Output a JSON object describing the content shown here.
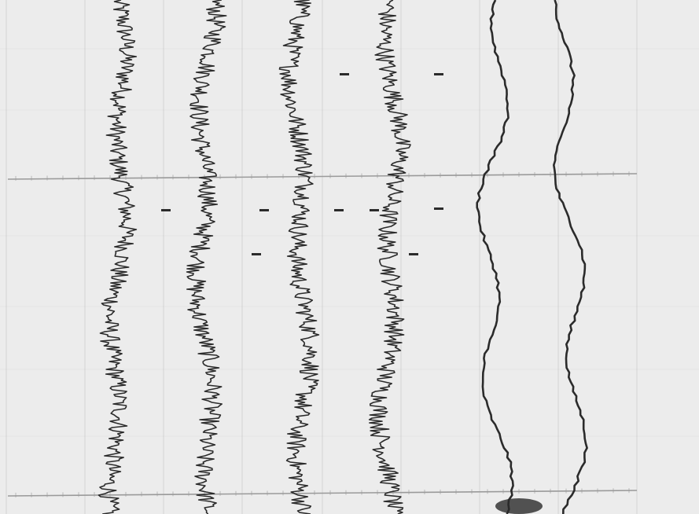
{
  "record": {
    "paper_color": "#ececec",
    "ink_color": "#2b2b2b",
    "grid_color": "#9a9a9a",
    "traces": [
      {
        "id": "trace-1",
        "style": "dense"
      },
      {
        "id": "trace-2",
        "style": "dense"
      },
      {
        "id": "trace-3",
        "style": "dense"
      },
      {
        "id": "trace-4",
        "style": "dense"
      },
      {
        "id": "trace-5",
        "style": "thin"
      },
      {
        "id": "trace-6",
        "style": "thin"
      }
    ]
  }
}
